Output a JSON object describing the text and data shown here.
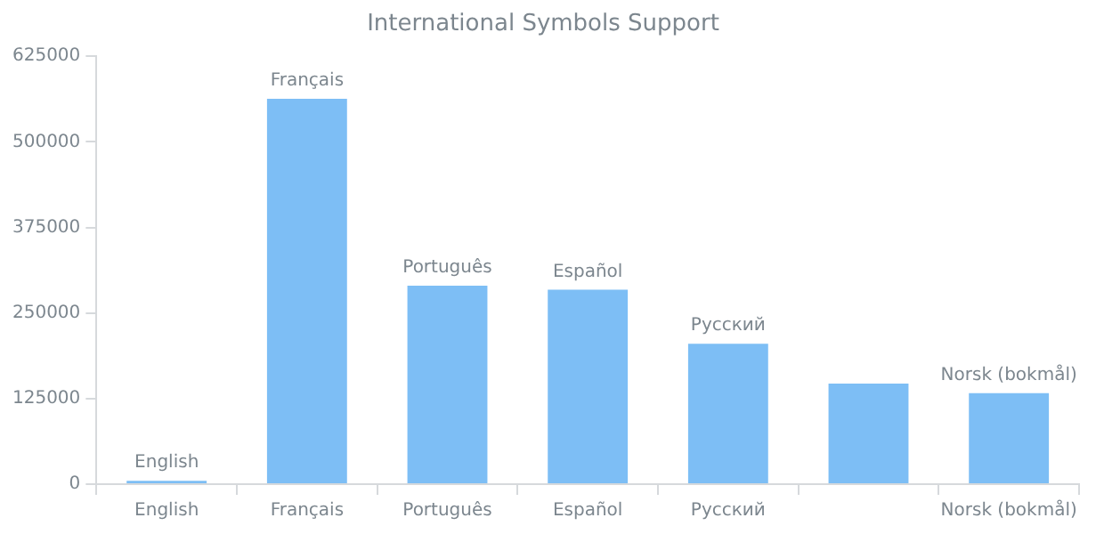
{
  "chart_data": {
    "type": "bar",
    "title": "International Symbols Support",
    "categories": [
      "English",
      "Français",
      "Português",
      "Español",
      "Русский",
      null,
      "Norsk (bokmål)"
    ],
    "values": [
      5000,
      563000,
      290000,
      284000,
      205000,
      147000,
      133000
    ],
    "value_labels": [
      "English",
      "Français",
      "Português",
      "Español",
      "Русский",
      null,
      "Norsk (bokmål)"
    ],
    "color": "#7dbef5",
    "ylim": [
      0,
      625000
    ],
    "yticks": [
      0,
      125000,
      250000,
      375000,
      500000,
      625000
    ],
    "grid": false,
    "legend": false
  }
}
